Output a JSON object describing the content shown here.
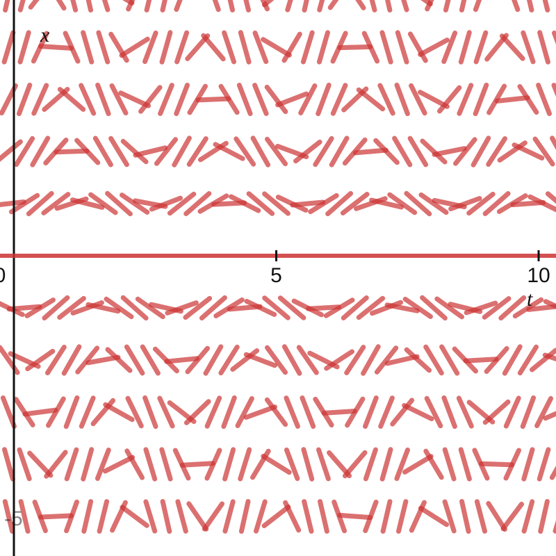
{
  "chart_data": {
    "type": "slope_field",
    "xlabel": "t",
    "ylabel": "x",
    "x_ticks": [
      "0",
      "5",
      "10"
    ],
    "y_tick_label_partial": "-5",
    "xlim": [
      0,
      10.3
    ],
    "ylim": [
      -5.3,
      4.8
    ],
    "field": {
      "t_step": 0.3,
      "x_values": [
        -5,
        -4,
        -3,
        -2,
        -1,
        0,
        1,
        2,
        3,
        4,
        5
      ],
      "description_values": {
        "omega": 2.2,
        "amplitude_scale": 1.0
      }
    },
    "colors": {
      "field": "#cc3333",
      "axes": "#111111"
    }
  }
}
